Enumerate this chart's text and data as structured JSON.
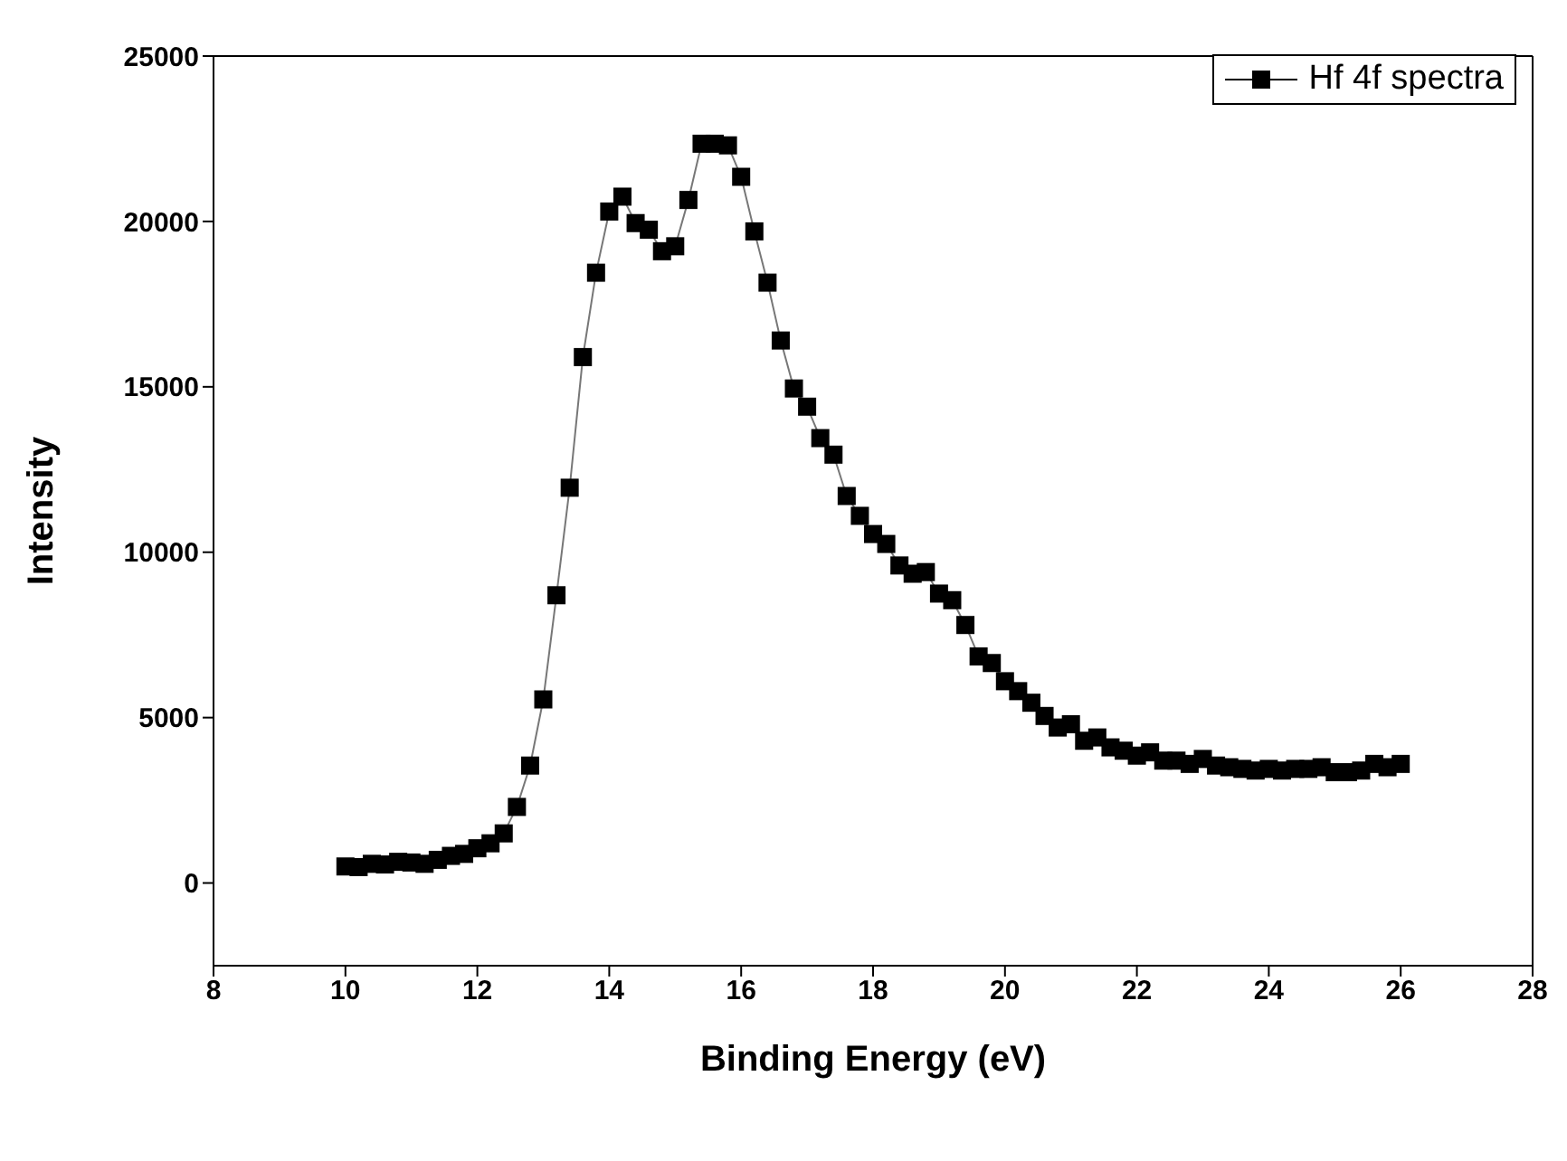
{
  "chart_data": {
    "type": "line",
    "xlabel": "Binding Energy (eV)",
    "ylabel": "Intensity",
    "x": [
      10.0,
      10.2,
      10.4,
      10.6,
      10.8,
      11.0,
      11.2,
      11.4,
      11.6,
      11.8,
      12.0,
      12.2,
      12.4,
      12.6,
      12.8,
      13.0,
      13.2,
      13.4,
      13.6,
      13.8,
      14.0,
      14.2,
      14.4,
      14.6,
      14.8,
      15.0,
      15.2,
      15.4,
      15.6,
      15.8,
      16.0,
      16.2,
      16.4,
      16.6,
      16.8,
      17.0,
      17.2,
      17.4,
      17.6,
      17.8,
      18.0,
      18.2,
      18.4,
      18.6,
      18.8,
      19.0,
      19.2,
      19.4,
      19.6,
      19.8,
      20.0,
      20.2,
      20.4,
      20.6,
      20.8,
      21.0,
      21.2,
      21.4,
      21.6,
      21.8,
      22.0,
      22.2,
      22.4,
      22.6,
      22.8,
      23.0,
      23.2,
      23.4,
      23.6,
      23.8,
      24.0,
      24.2,
      24.4,
      24.6,
      24.8,
      25.0,
      25.2,
      25.4,
      25.6,
      25.8,
      26.0
    ],
    "series": [
      {
        "name": "Hf 4f spectra",
        "color": "#000000",
        "values": [
          500,
          480,
          580,
          560,
          640,
          620,
          580,
          700,
          820,
          880,
          1050,
          1200,
          1500,
          2300,
          3550,
          5550,
          8700,
          11950,
          15900,
          18450,
          20300,
          20750,
          19950,
          19750,
          19100,
          19250,
          20650,
          22350,
          22350,
          22300,
          21350,
          19700,
          18150,
          16400,
          14950,
          14400,
          13450,
          12950,
          11700,
          11100,
          10550,
          10250,
          9600,
          9350,
          9400,
          8750,
          8550,
          7800,
          6850,
          6650,
          6100,
          5800,
          5450,
          5050,
          4700,
          4800,
          4300,
          4400,
          4100,
          4000,
          3850,
          3950,
          3700,
          3700,
          3600,
          3750,
          3550,
          3500,
          3450,
          3400,
          3450,
          3400,
          3450,
          3450,
          3500,
          3350,
          3350,
          3400,
          3600,
          3500,
          3600
        ]
      }
    ],
    "xlim": [
      8,
      28
    ],
    "xticks": [
      8,
      10,
      12,
      14,
      16,
      18,
      20,
      22,
      24,
      26,
      28
    ],
    "ylim": [
      -2500,
      25000
    ],
    "yticks": [
      0,
      5000,
      10000,
      15000,
      20000,
      25000
    ],
    "grid": false,
    "legend": "top right",
    "marker": "square",
    "line_style": "solid"
  }
}
